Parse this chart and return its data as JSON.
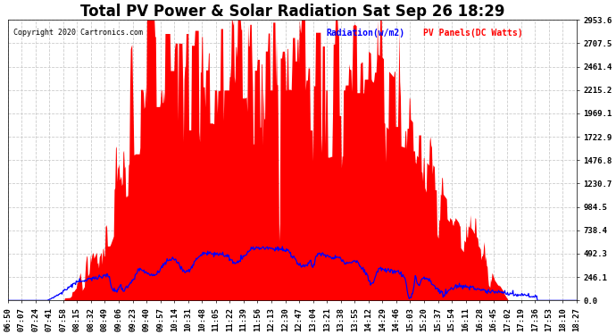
{
  "title": "Total PV Power & Solar Radiation Sat Sep 26 18:29",
  "copyright_text": "Copyright 2020 Cartronics.com",
  "legend_radiation": "Radiation(w/m2)",
  "legend_pv": "PV Panels(DC Watts)",
  "radiation_color": "blue",
  "pv_color": "red",
  "background_color": "#ffffff",
  "yticks": [
    0.0,
    246.1,
    492.3,
    738.4,
    984.5,
    1230.7,
    1476.8,
    1722.9,
    1969.1,
    2215.2,
    2461.4,
    2707.5,
    2953.6
  ],
  "ymax": 2953.6,
  "xtick_labels": [
    "06:50",
    "07:07",
    "07:24",
    "07:41",
    "07:58",
    "08:15",
    "08:32",
    "08:49",
    "09:06",
    "09:23",
    "09:40",
    "09:57",
    "10:14",
    "10:31",
    "10:48",
    "11:05",
    "11:22",
    "11:39",
    "11:56",
    "12:13",
    "12:30",
    "12:47",
    "13:04",
    "13:21",
    "13:38",
    "13:55",
    "14:12",
    "14:29",
    "14:46",
    "15:03",
    "15:20",
    "15:37",
    "15:54",
    "16:11",
    "16:28",
    "16:45",
    "17:02",
    "17:19",
    "17:36",
    "17:53",
    "18:10",
    "18:27"
  ],
  "title_fontsize": 12,
  "tick_fontsize": 6.5,
  "grid_color": "#cccccc",
  "grid_linestyle": "--",
  "figsize": [
    6.9,
    3.75
  ],
  "dpi": 100
}
